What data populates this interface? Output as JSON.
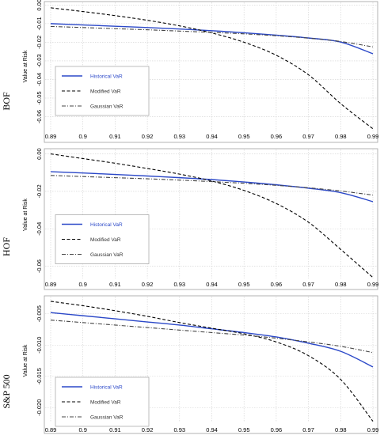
{
  "chart_data": [
    {
      "type": "line",
      "row_label": "BOF",
      "ylabel": "Value at Risk",
      "x": [
        0.89,
        0.9,
        0.91,
        0.92,
        0.93,
        0.94,
        0.95,
        0.96,
        0.97,
        0.98,
        0.99
      ],
      "x_ticks": [
        "0.89",
        "0.9",
        "0.91",
        "0.92",
        "0.93",
        "0.94",
        "0.95",
        "0.96",
        "0.97",
        "0.98",
        "0.99"
      ],
      "ylim": [
        -0.067,
        0.001
      ],
      "y_ticks": [
        0.0,
        -0.01,
        -0.02,
        -0.03,
        -0.04,
        -0.05,
        -0.06
      ],
      "y_tick_labels": [
        "0.00",
        "-0.01",
        "-0.02",
        "-0.03",
        "-0.04",
        "-0.05",
        "-0.06"
      ],
      "series": [
        {
          "name": "Historical VaR",
          "color": "#2b48c8",
          "dash": "solid",
          "values": [
            -0.01,
            -0.0107,
            -0.0114,
            -0.0121,
            -0.0129,
            -0.0138,
            -0.0149,
            -0.0162,
            -0.0177,
            -0.0199,
            -0.0262
          ]
        },
        {
          "name": "Modified VaR",
          "color": "#000000",
          "dash": "dashed",
          "values": [
            -0.0015,
            -0.0035,
            -0.0057,
            -0.0082,
            -0.0112,
            -0.015,
            -0.02,
            -0.027,
            -0.0375,
            -0.053,
            -0.0665
          ]
        },
        {
          "name": "Gaussian VaR",
          "color": "#444444",
          "dash": "dashdot",
          "values": [
            -0.0115,
            -0.0121,
            -0.0127,
            -0.0133,
            -0.014,
            -0.0147,
            -0.0155,
            -0.0165,
            -0.0178,
            -0.0196,
            -0.0225
          ]
        }
      ],
      "legend": "bottom-left",
      "grid": true
    },
    {
      "type": "line",
      "row_label": "HOF",
      "ylabel": "Value at Risk",
      "x": [
        0.89,
        0.9,
        0.91,
        0.92,
        0.93,
        0.94,
        0.95,
        0.96,
        0.97,
        0.98,
        0.99
      ],
      "x_ticks": [
        "0.89",
        "0.9",
        "0.91",
        "0.92",
        "0.93",
        "0.94",
        "0.95",
        "0.96",
        "0.97",
        "0.98",
        "0.99"
      ],
      "ylim": [
        -0.0665,
        0.0015
      ],
      "y_ticks": [
        0.0,
        -0.02,
        -0.04,
        -0.06
      ],
      "y_tick_labels": [
        "0.00",
        "-0.02",
        "-0.04",
        "-0.06"
      ],
      "series": [
        {
          "name": "Historical VaR",
          "color": "#2b48c8",
          "dash": "solid",
          "values": [
            -0.0095,
            -0.0102,
            -0.011,
            -0.0118,
            -0.0127,
            -0.0137,
            -0.015,
            -0.0165,
            -0.0183,
            -0.0207,
            -0.0255
          ]
        },
        {
          "name": "Modified VaR",
          "color": "#000000",
          "dash": "dashed",
          "values": [
            0.0,
            -0.0025,
            -0.005,
            -0.0078,
            -0.0108,
            -0.0145,
            -0.0195,
            -0.0265,
            -0.0365,
            -0.051,
            -0.066
          ]
        },
        {
          "name": "Gaussian VaR",
          "color": "#444444",
          "dash": "dashdot",
          "values": [
            -0.0115,
            -0.0121,
            -0.0127,
            -0.0133,
            -0.014,
            -0.0148,
            -0.0157,
            -0.0168,
            -0.0181,
            -0.0198,
            -0.022
          ]
        }
      ],
      "legend": "bottom-left",
      "grid": true
    },
    {
      "type": "line",
      "row_label": "S&P 500",
      "ylabel": "Value at Risk",
      "x": [
        0.89,
        0.9,
        0.91,
        0.92,
        0.93,
        0.94,
        0.95,
        0.96,
        0.97,
        0.98,
        0.99
      ],
      "x_ticks": [
        "0.89",
        "0.9",
        "0.91",
        "0.92",
        "0.93",
        "0.94",
        "0.95",
        "0.96",
        "0.97",
        "0.98",
        "0.99"
      ],
      "ylim": [
        -0.0225,
        -0.0025
      ],
      "y_ticks": [
        -0.005,
        -0.01,
        -0.015,
        -0.02
      ],
      "y_tick_labels": [
        "-0.005",
        "-0.010",
        "-0.015",
        "-0.020"
      ],
      "series": [
        {
          "name": "Historical VaR",
          "color": "#2b48c8",
          "dash": "solid",
          "values": [
            -0.0048,
            -0.0053,
            -0.0058,
            -0.0063,
            -0.0068,
            -0.0074,
            -0.008,
            -0.0087,
            -0.0097,
            -0.011,
            -0.0135
          ]
        },
        {
          "name": "Modified VaR",
          "color": "#000000",
          "dash": "dashed",
          "values": [
            -0.003,
            -0.0037,
            -0.0045,
            -0.0054,
            -0.0064,
            -0.0073,
            -0.0082,
            -0.0095,
            -0.0117,
            -0.0155,
            -0.0222
          ]
        },
        {
          "name": "Gaussian VaR",
          "color": "#444444",
          "dash": "dashdot",
          "values": [
            -0.006,
            -0.0064,
            -0.0068,
            -0.0072,
            -0.0076,
            -0.008,
            -0.0084,
            -0.0089,
            -0.0095,
            -0.0102,
            -0.0112
          ]
        }
      ],
      "legend": "bottom-left",
      "grid": true
    }
  ]
}
